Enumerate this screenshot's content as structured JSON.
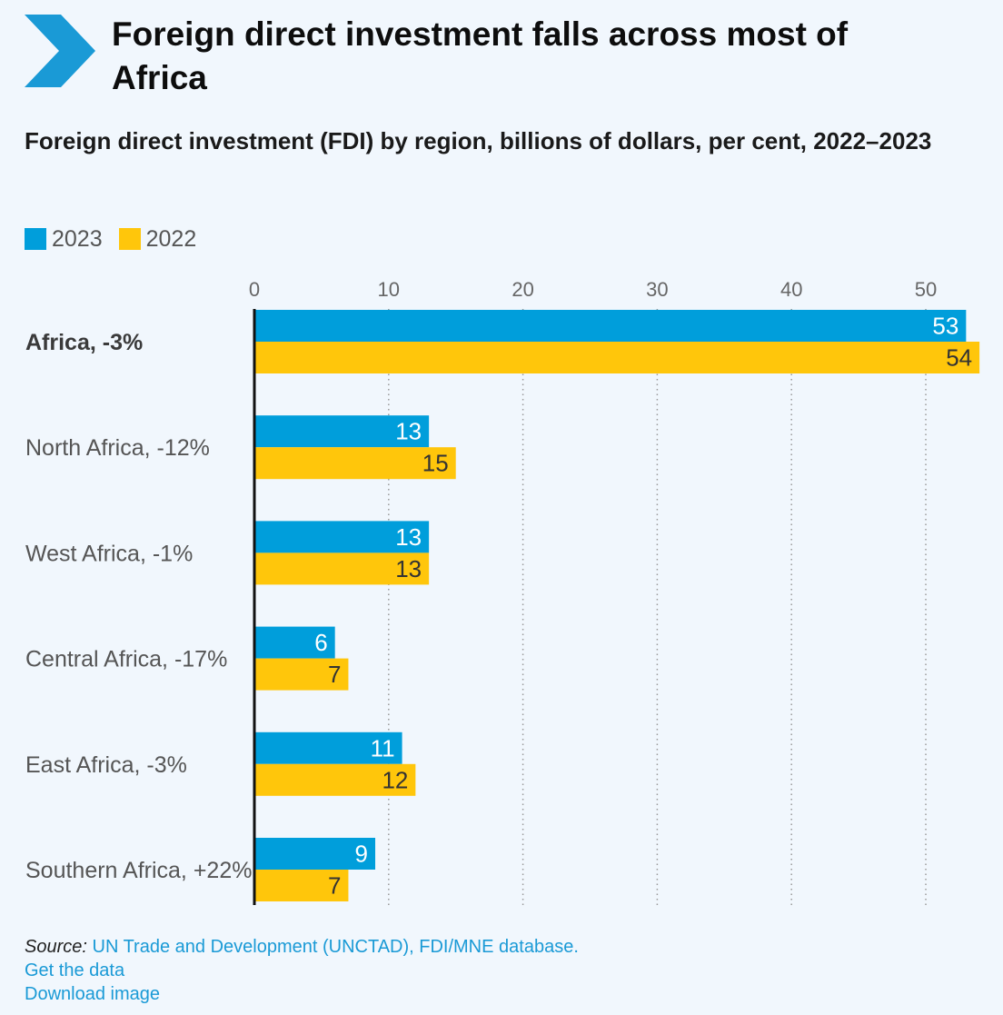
{
  "header": {
    "title": "Foreign direct investment falls across most of Africa",
    "subtitle": "Foreign direct investment (FDI) by region, billions of dollars, per cent, 2022–2023"
  },
  "legend": [
    {
      "label": "2023",
      "color": "#009edb"
    },
    {
      "label": "2022",
      "color": "#ffc60b"
    }
  ],
  "chart_data": {
    "type": "bar",
    "orientation": "horizontal",
    "categories": [
      "Africa, -3%",
      "North Africa, -12%",
      "West Africa, -1%",
      "Central Africa, -17%",
      "East Africa, -3%",
      "Southern Africa, +22%"
    ],
    "highlighted_category": "Africa, -3%",
    "series": [
      {
        "name": "2023",
        "color": "#009edb",
        "values": [
          53,
          13,
          13,
          6,
          11,
          9
        ]
      },
      {
        "name": "2022",
        "color": "#ffc60b",
        "values": [
          54,
          15,
          13,
          7,
          12,
          7
        ]
      }
    ],
    "xlim": [
      0,
      54
    ],
    "xticks": [
      0,
      10,
      20,
      30,
      40,
      50
    ],
    "grid": "vertical dotted",
    "legend_position": "top-left"
  },
  "footer": {
    "source_label": "Source:",
    "source_text": "UN Trade and Development (UNCTAD), FDI/MNE database.",
    "links": [
      "Get the data",
      "Download image"
    ]
  }
}
